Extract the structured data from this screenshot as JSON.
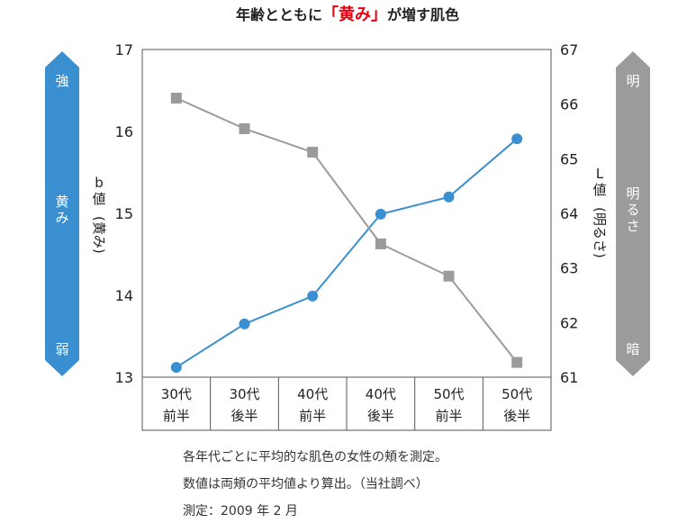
{
  "chart_data": {
    "type": "line",
    "title_parts": [
      "年齢とともに",
      "「黄み」",
      "が増す肌色"
    ],
    "categories": [
      [
        "30代",
        "前半"
      ],
      [
        "30代",
        "後半"
      ],
      [
        "40代",
        "前半"
      ],
      [
        "40代",
        "後半"
      ],
      [
        "50代",
        "前半"
      ],
      [
        "50代",
        "後半"
      ]
    ],
    "left_axis": {
      "label_chars": [
        "b",
        "値",
        "(黄み)"
      ],
      "ylim": [
        13,
        17
      ],
      "ticks": [
        "13",
        "14",
        "15",
        "16",
        "17"
      ]
    },
    "right_axis": {
      "label_chars": [
        "L",
        "値",
        "(明るさ)"
      ],
      "ylim": [
        61,
        67
      ],
      "ticks": [
        "61",
        "62",
        "63",
        "64",
        "65",
        "66",
        "67"
      ]
    },
    "series": [
      {
        "name": "b値(黄み)",
        "axis": "left",
        "color": "#3a8fd0",
        "marker": "circle",
        "values": [
          13.12,
          13.65,
          13.99,
          14.99,
          15.2,
          15.91
        ]
      },
      {
        "name": "L値(明るさ)",
        "axis": "right",
        "color": "#9b9b9b",
        "marker": "square",
        "values": [
          66.11,
          65.55,
          65.12,
          63.44,
          62.85,
          61.27
        ]
      }
    ],
    "left_arrow": {
      "color": "#3a8fd0",
      "top": "強",
      "middle": "黄み",
      "bottom": "弱"
    },
    "right_arrow": {
      "color": "#9b9b9b",
      "top": "明",
      "middle": "明るさ",
      "bottom": "暗"
    },
    "title_highlight_color": "#e60012"
  },
  "notes": [
    "各年代ごとに平均的な肌色の女性の頬を測定。",
    "数値は両頬の平均値より算出。（当社調べ）",
    "測定：2009 年 2 月"
  ]
}
